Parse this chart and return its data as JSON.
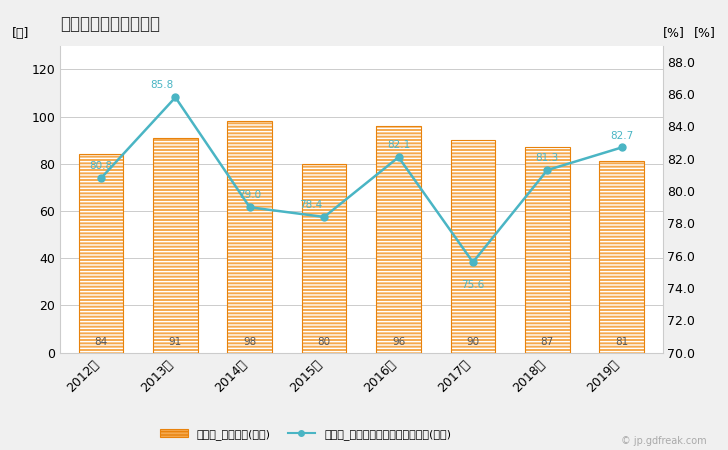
{
  "title": "住宅用建築物数の推移",
  "years": [
    "2012年",
    "2013年",
    "2014年",
    "2015年",
    "2016年",
    "2017年",
    "2018年",
    "2019年"
  ],
  "bar_values": [
    84,
    91,
    98,
    80,
    96,
    90,
    87,
    81
  ],
  "line_values": [
    80.8,
    85.8,
    79.0,
    78.4,
    82.1,
    75.6,
    81.3,
    82.7
  ],
  "bar_color": "#f5a94e",
  "bar_edge_color": "#e8820c",
  "line_color": "#4ab5c4",
  "ylabel_left": "[棟]",
  "ylabel_right_inner": "[%]",
  "ylabel_right_outer": "[%]",
  "ylim_left": [
    0,
    130
  ],
  "ylim_right": [
    70.0,
    89.0
  ],
  "yticks_left": [
    0,
    20,
    40,
    60,
    80,
    100,
    120
  ],
  "yticks_right": [
    70.0,
    72.0,
    74.0,
    76.0,
    78.0,
    80.0,
    82.0,
    84.0,
    86.0,
    88.0
  ],
  "legend_bar_label": "住宅用_建築物数(左軸)",
  "legend_line_label": "住宅用_全建築物数にしめるシェア(右軸)",
  "background_color": "#f0f0f0",
  "plot_background": "#ffffff",
  "title_fontsize": 12,
  "axis_label_fontsize": 9,
  "tick_fontsize": 9,
  "annotation_fontsize": 7.5,
  "watermark": "© jp.gdfreak.com",
  "line_annot_offsets": [
    [
      0,
      5
    ],
    [
      -10,
      5
    ],
    [
      0,
      5
    ],
    [
      -10,
      5
    ],
    [
      0,
      5
    ],
    [
      0,
      -13
    ],
    [
      0,
      5
    ],
    [
      0,
      5
    ]
  ]
}
